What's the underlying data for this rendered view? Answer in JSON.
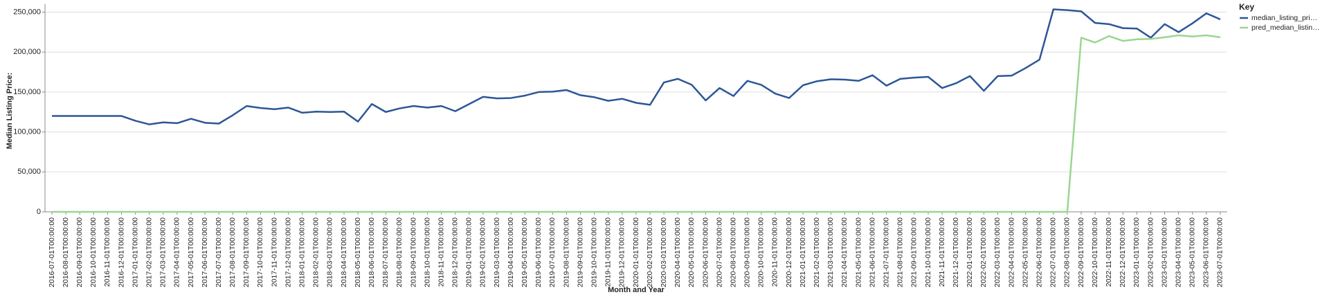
{
  "chart_data": {
    "type": "line",
    "y_label": "Median Listing Price:",
    "x_label": "Month and Year",
    "legend_title": "Key",
    "legend_position": "right",
    "grid": true,
    "ylim": [
      0,
      260000
    ],
    "yticks": [
      0,
      {
        "value": 50000,
        "label": "50,000"
      },
      {
        "value": 100000,
        "label": "100,000"
      },
      {
        "value": 150000,
        "label": "150,000"
      },
      {
        "value": 200000,
        "label": "200,000"
      },
      {
        "value": 250000,
        "label": "250,000"
      }
    ],
    "categories": [
      "2016-07-01T00:00:00",
      "2016-08-01T00:00:00",
      "2016-09-01T00:00:00",
      "2016-10-01T00:00:00",
      "2016-11-01T00:00:00",
      "2016-12-01T00:00:00",
      "2017-01-01T00:00:00",
      "2017-02-01T00:00:00",
      "2017-03-01T00:00:00",
      "2017-04-01T00:00:00",
      "2017-05-01T00:00:00",
      "2017-06-01T00:00:00",
      "2017-07-01T00:00:00",
      "2017-08-01T00:00:00",
      "2017-09-01T00:00:00",
      "2017-10-01T00:00:00",
      "2017-11-01T00:00:00",
      "2017-12-01T00:00:00",
      "2018-01-01T00:00:00",
      "2018-02-01T00:00:00",
      "2018-03-01T00:00:00",
      "2018-04-01T00:00:00",
      "2018-05-01T00:00:00",
      "2018-06-01T00:00:00",
      "2018-07-01T00:00:00",
      "2018-08-01T00:00:00",
      "2018-09-01T00:00:00",
      "2018-10-01T00:00:00",
      "2018-11-01T00:00:00",
      "2018-12-01T00:00:00",
      "2019-01-01T00:00:00",
      "2019-02-01T00:00:00",
      "2019-03-01T00:00:00",
      "2019-04-01T00:00:00",
      "2019-05-01T00:00:00",
      "2019-06-01T00:00:00",
      "2019-07-01T00:00:00",
      "2019-08-01T00:00:00",
      "2019-09-01T00:00:00",
      "2019-10-01T00:00:00",
      "2019-11-01T00:00:00",
      "2019-12-01T00:00:00",
      "2020-01-01T00:00:00",
      "2020-02-01T00:00:00",
      "2020-03-01T00:00:00",
      "2020-04-01T00:00:00",
      "2020-05-01T00:00:00",
      "2020-06-01T00:00:00",
      "2020-07-01T00:00:00",
      "2020-08-01T00:00:00",
      "2020-09-01T00:00:00",
      "2020-10-01T00:00:00",
      "2020-11-01T00:00:00",
      "2020-12-01T00:00:00",
      "2021-01-01T00:00:00",
      "2021-02-01T00:00:00",
      "2021-03-01T00:00:00",
      "2021-04-01T00:00:00",
      "2021-05-01T00:00:00",
      "2021-06-01T00:00:00",
      "2021-07-01T00:00:00",
      "2021-08-01T00:00:00",
      "2021-09-01T00:00:00",
      "2021-10-01T00:00:00",
      "2021-11-01T00:00:00",
      "2021-12-01T00:00:00",
      "2022-01-01T00:00:00",
      "2022-02-01T00:00:00",
      "2022-03-01T00:00:00",
      "2022-04-01T00:00:00",
      "2022-05-01T00:00:00",
      "2022-06-01T00:00:00",
      "2022-07-01T00:00:00",
      "2022-08-01T00:00:00",
      "2022-09-01T00:00:00",
      "2022-10-01T00:00:00",
      "2022-11-01T00:00:00",
      "2022-12-01T00:00:00",
      "2023-01-01T00:00:00",
      "2023-02-01T00:00:00",
      "2023-03-01T00:00:00",
      "2023-04-01T00:00:00",
      "2023-05-01T00:00:00",
      "2023-06-01T00:00:00",
      "2023-07-01T00:00:00"
    ],
    "series": [
      {
        "name": "median_listing_pri…",
        "color": "#2c5697",
        "values": [
          120000,
          120000,
          120000,
          120000,
          120000,
          120000,
          114000,
          109500,
          112000,
          111000,
          116500,
          111500,
          110500,
          121000,
          132500,
          130000,
          128500,
          130500,
          124000,
          125500,
          125000,
          125500,
          113000,
          135000,
          125000,
          129500,
          132500,
          130500,
          132500,
          126000,
          135000,
          144000,
          142000,
          142500,
          145500,
          150000,
          150500,
          152500,
          146000,
          143500,
          139000,
          141500,
          136500,
          134000,
          162000,
          166500,
          159000,
          139500,
          155000,
          145000,
          164000,
          159000,
          148000,
          142500,
          158500,
          163500,
          166000,
          165500,
          164000,
          171000,
          158000,
          166500,
          168000,
          169000,
          155000,
          161000,
          170000,
          151500,
          170000,
          170500,
          180000,
          190500,
          253500,
          252500,
          251000,
          236500,
          235000,
          230000,
          229500,
          218000,
          235000,
          225000,
          236000,
          248500,
          241000
        ]
      },
      {
        "name": "pred_median_listin…",
        "color": "#9ad68f",
        "values": [
          0,
          0,
          0,
          0,
          0,
          0,
          0,
          0,
          0,
          0,
          0,
          0,
          0,
          0,
          0,
          0,
          0,
          0,
          0,
          0,
          0,
          0,
          0,
          0,
          0,
          0,
          0,
          0,
          0,
          0,
          0,
          0,
          0,
          0,
          0,
          0,
          0,
          0,
          0,
          0,
          0,
          0,
          0,
          0,
          0,
          0,
          0,
          0,
          0,
          0,
          0,
          0,
          0,
          0,
          0,
          0,
          0,
          0,
          0,
          0,
          0,
          0,
          0,
          0,
          0,
          0,
          0,
          0,
          0,
          0,
          0,
          0,
          0,
          0,
          218000,
          212000,
          220000,
          214000,
          216000,
          216500,
          218500,
          221000,
          219500,
          221000,
          218500
        ]
      }
    ]
  }
}
